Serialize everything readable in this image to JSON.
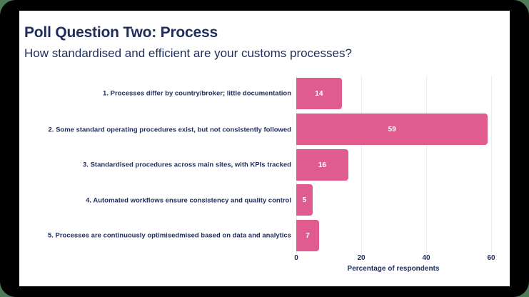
{
  "slide": {
    "title": "Poll Question Two: Process",
    "subtitle": "How standardised and efficient are your customs processes?"
  },
  "colors": {
    "bar": "#e05c8f",
    "text": "#1f2d5c",
    "frame": "#000000",
    "background": "#4e7a57"
  },
  "chart_data": {
    "type": "bar",
    "orientation": "horizontal",
    "title": "Poll Question Two: Process",
    "subtitle": "How standardised and efficient are your customs processes?",
    "categories": [
      "1. Processes differ by country/broker; little documentation",
      "2. Some standard operating procedures exist, but not consistently followed",
      "3. Standardised procedures across main sites, with KPIs tracked",
      "4. Automated workflows ensure consistency and quality control",
      "5. Processes are continuously optimisedmised based on data and analytics"
    ],
    "values": [
      14,
      59,
      16,
      5,
      7
    ],
    "data_labels": [
      "14",
      "59",
      "16",
      "5",
      "7"
    ],
    "xlabel": "Percentage of respondents",
    "ylabel": "",
    "xlim": [
      0,
      60
    ],
    "xticks": [
      "0",
      "20",
      "40",
      "60"
    ],
    "grid": true,
    "legend": null
  }
}
